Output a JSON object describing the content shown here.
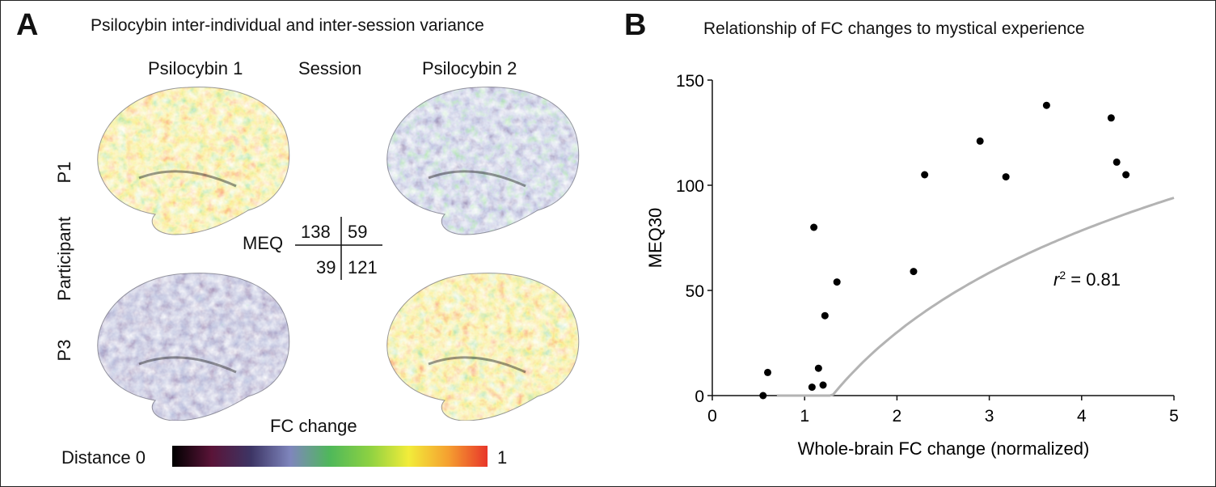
{
  "panel_a": {
    "letter": "A",
    "title": "Psilocybin inter-individual and inter-session variance",
    "col_labels": [
      "Psilocybin 1",
      "Session",
      "Psilocybin 2"
    ],
    "row_labels": [
      "P1",
      "Participant",
      "P3"
    ],
    "meq_label": "MEQ",
    "meq_values": {
      "p1_s1": "138",
      "p1_s2": "59",
      "p3_s1": "39",
      "p3_s2": "121"
    },
    "brain_fc_levels": {
      "p1_s1": 0.8,
      "p1_s2": 0.35,
      "p3_s1": 0.2,
      "p3_s2": 0.75
    },
    "colorbar": {
      "title": "FC change",
      "left_label": "Distance 0",
      "right_label": "1",
      "colors": [
        "#000000",
        "#5a1438",
        "#3d3565",
        "#7f86bd",
        "#4fb85a",
        "#8cd142",
        "#f2ec3a",
        "#f5a030",
        "#e8362a"
      ]
    }
  },
  "chart_data": {
    "type": "scatter",
    "panel_letter": "B",
    "title": "Relationship of FC changes to mystical experience",
    "xlabel": "Whole-brain FC change (normalized)",
    "ylabel": "MEQ30",
    "xlim": [
      0,
      5
    ],
    "ylim": [
      0,
      150
    ],
    "xticks": [
      0,
      1,
      2,
      3,
      4,
      5
    ],
    "yticks": [
      0,
      50,
      100,
      150
    ],
    "grid": false,
    "points": [
      {
        "x": 0.55,
        "y": 0
      },
      {
        "x": 0.6,
        "y": 11
      },
      {
        "x": 1.08,
        "y": 4
      },
      {
        "x": 1.1,
        "y": 80
      },
      {
        "x": 1.15,
        "y": 13
      },
      {
        "x": 1.2,
        "y": 5
      },
      {
        "x": 1.22,
        "y": 38
      },
      {
        "x": 1.35,
        "y": 54
      },
      {
        "x": 2.18,
        "y": 59
      },
      {
        "x": 2.3,
        "y": 105
      },
      {
        "x": 2.9,
        "y": 121
      },
      {
        "x": 3.18,
        "y": 104
      },
      {
        "x": 3.62,
        "y": 138
      },
      {
        "x": 4.32,
        "y": 132
      },
      {
        "x": 4.38,
        "y": 111
      },
      {
        "x": 4.48,
        "y": 105
      }
    ],
    "fit": {
      "model": "logarithmic",
      "a": -18.3,
      "b": 69.8,
      "x_start": 0.7,
      "x_end": 5,
      "color": "#b3b3b3"
    },
    "annotation": {
      "var": "r",
      "sup": "2",
      "rest": " = 0.81"
    },
    "marker_color": "#000000"
  }
}
